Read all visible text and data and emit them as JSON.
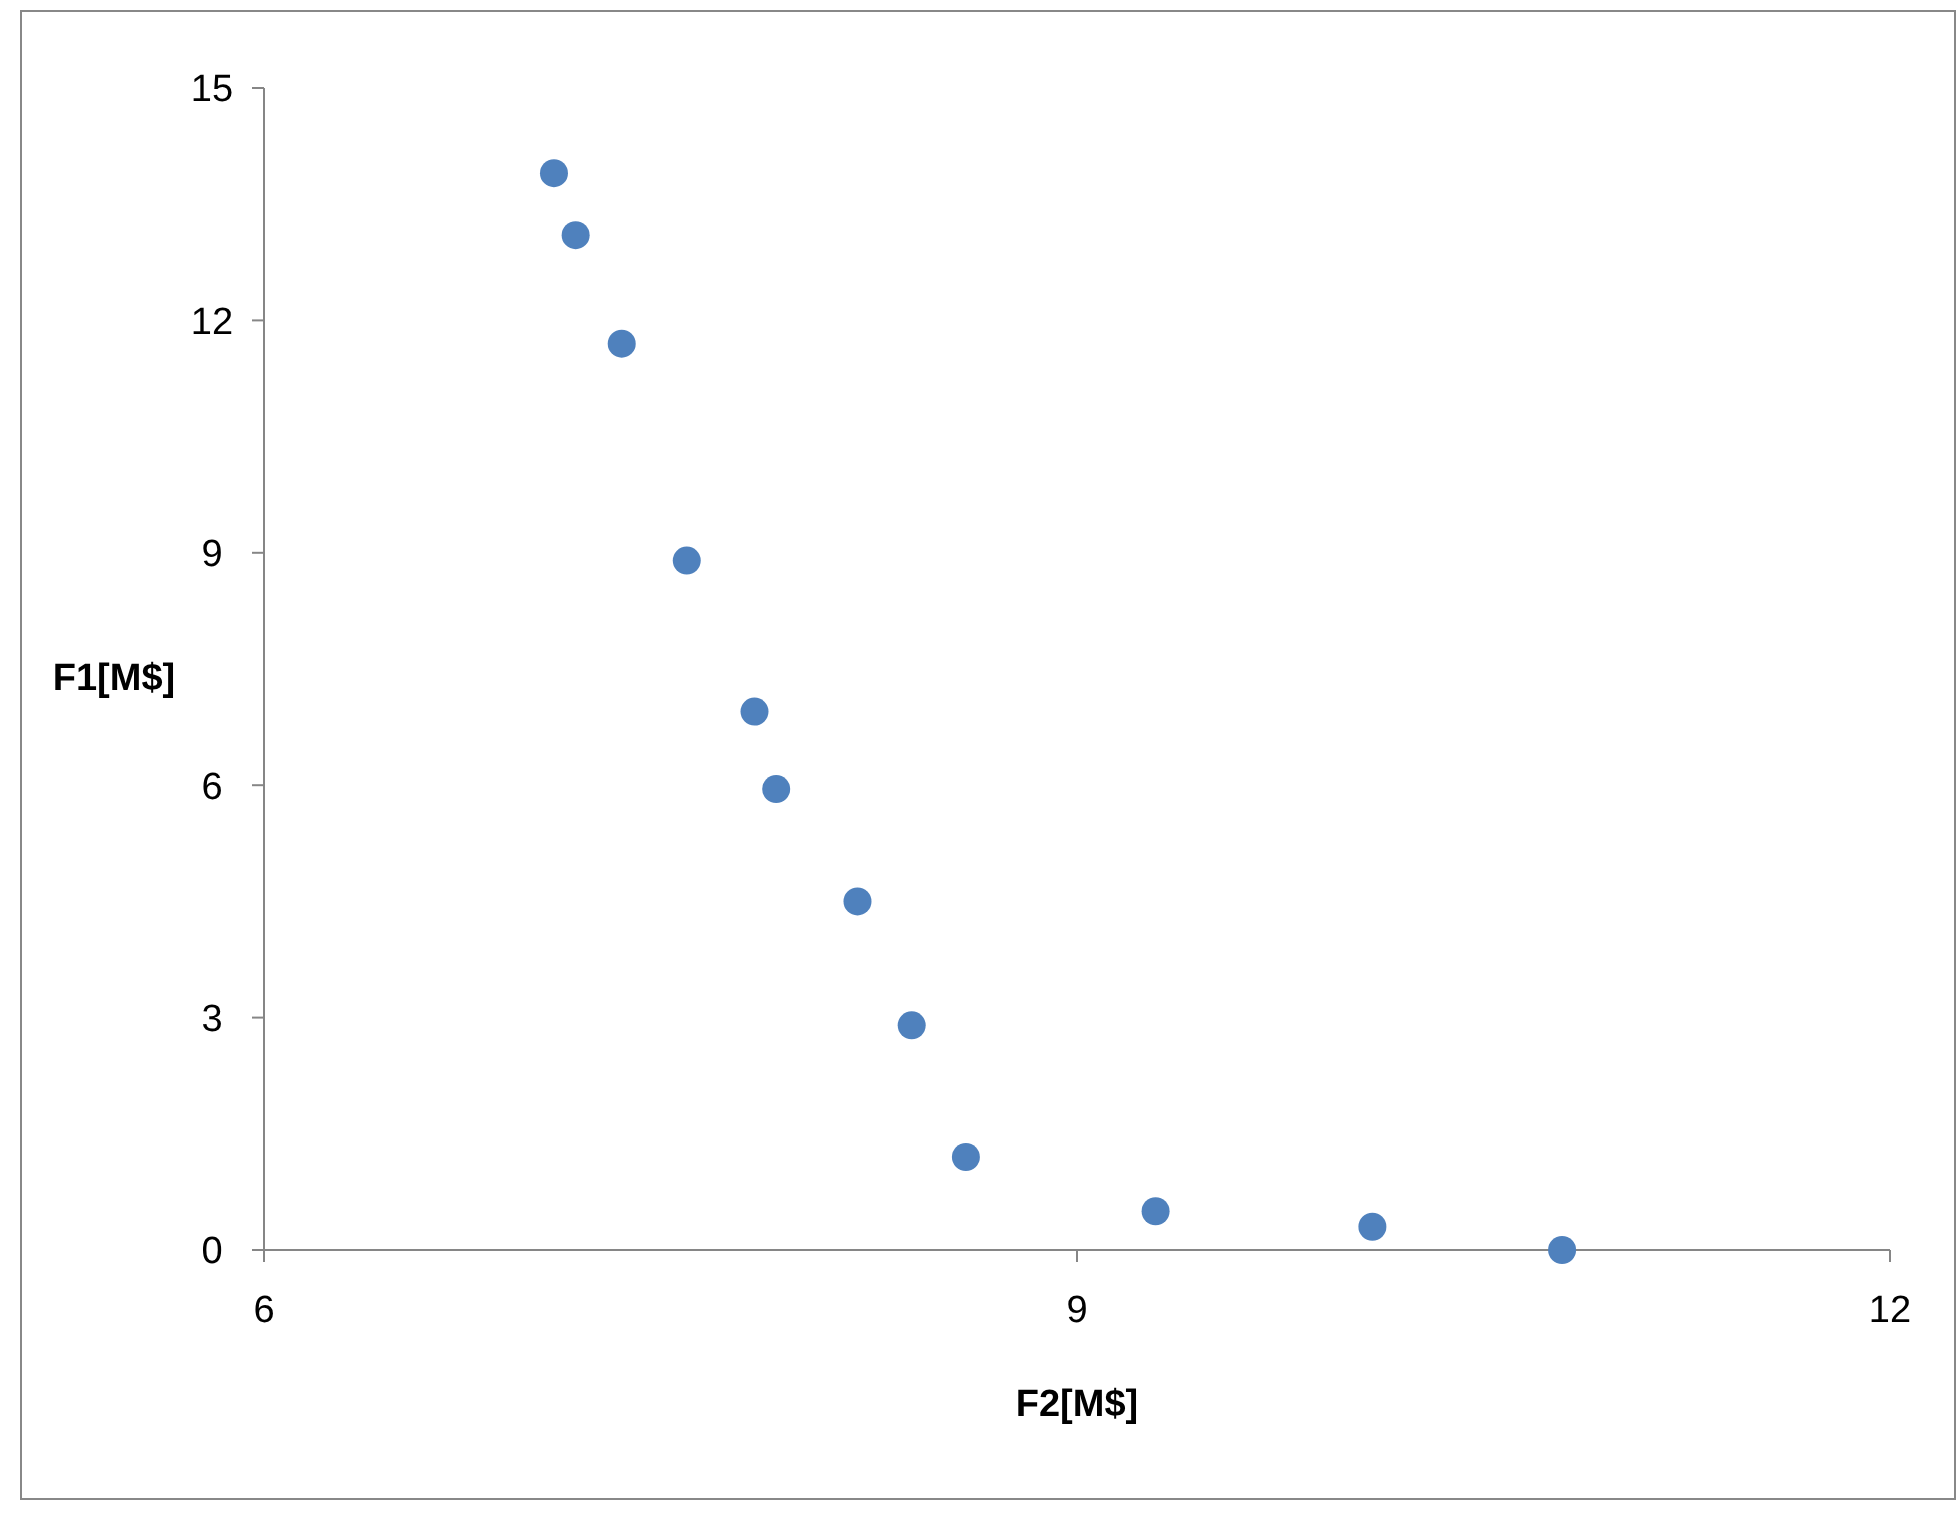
{
  "chart_data": {
    "type": "scatter",
    "xlabel": "F2[M$]",
    "ylabel": "F1[M$]",
    "x": [
      7.07,
      7.15,
      7.32,
      7.56,
      7.81,
      7.89,
      8.19,
      8.39,
      8.59,
      9.29,
      10.09,
      10.79
    ],
    "series": [
      {
        "color": "#4f81bd",
        "values": [
          13.9,
          13.1,
          11.7,
          8.9,
          6.95,
          5.95,
          4.5,
          2.9,
          1.2,
          0.5,
          0.3,
          0
        ]
      }
    ],
    "xlim": [
      6,
      12
    ],
    "xticks": [
      6,
      9,
      12
    ],
    "ylim": [
      0,
      15
    ],
    "yticks": [
      0,
      3,
      6,
      9,
      12,
      15
    ],
    "grid": false,
    "marker": "circle"
  }
}
